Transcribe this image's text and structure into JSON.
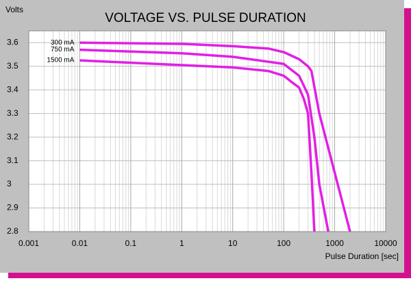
{
  "chart_data": {
    "type": "line",
    "title": "VOLTAGE VS. PULSE DURATION",
    "y_label": "Volts",
    "x_label": "Pulse Duration [sec]",
    "x_scale": "log",
    "grid": true,
    "minor_grid": true,
    "xlim": [
      0.001,
      10000
    ],
    "xticks": [
      0.001,
      0.01,
      0.1,
      1,
      10,
      100,
      1000,
      10000
    ],
    "ylim": [
      2.8,
      3.65
    ],
    "yticks": [
      2.8,
      2.9,
      3.0,
      3.1,
      3.2,
      3.3,
      3.4,
      3.5,
      3.6
    ],
    "series": [
      {
        "name": "300 mA",
        "color": "#e21ee6",
        "x": [
          0.01,
          1,
          10,
          50,
          100,
          200,
          300,
          350,
          500,
          1000,
          2000
        ],
        "values": [
          3.6,
          3.595,
          3.585,
          3.575,
          3.56,
          3.53,
          3.5,
          3.48,
          3.3,
          3.05,
          2.8
        ]
      },
      {
        "name": "750 mA",
        "color": "#e21ee6",
        "x": [
          0.01,
          1,
          10,
          100,
          200,
          300,
          400,
          500,
          750
        ],
        "values": [
          3.57,
          3.555,
          3.54,
          3.51,
          3.46,
          3.38,
          3.2,
          3.0,
          2.8
        ]
      },
      {
        "name": "1500 mA",
        "color": "#e21ee6",
        "x": [
          0.01,
          1,
          10,
          50,
          100,
          150,
          200,
          250,
          300,
          350,
          400
        ],
        "values": [
          3.525,
          3.505,
          3.495,
          3.48,
          3.46,
          3.43,
          3.41,
          3.36,
          3.3,
          3.05,
          2.8
        ]
      }
    ]
  }
}
